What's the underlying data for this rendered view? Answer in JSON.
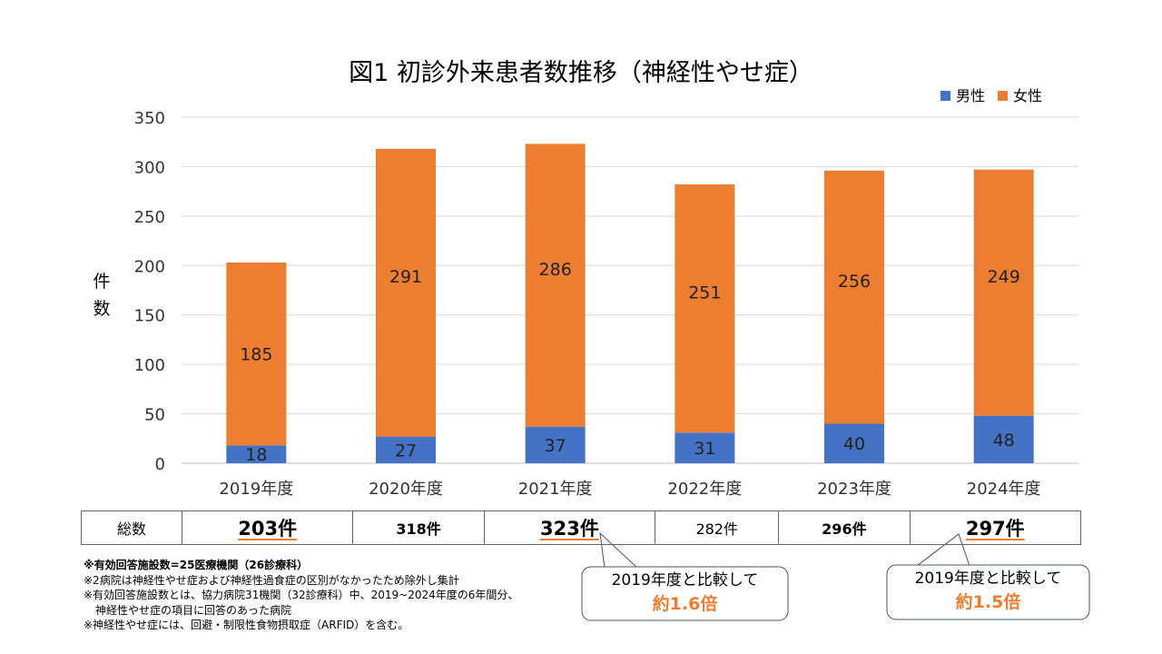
{
  "chart_data": {
    "type": "bar",
    "stacked": true,
    "title": "図1 初診外来患者数推移（神経性やせ症）",
    "ylabel": "件数",
    "xlabel": "",
    "ylim": [
      0,
      350
    ],
    "yticks": [
      0,
      50,
      100,
      150,
      200,
      250,
      300,
      350
    ],
    "grid": true,
    "legend_position": "top-right",
    "categories": [
      "2019年度",
      "2020年度",
      "2021年度",
      "2022年度",
      "2023年度",
      "2024年度"
    ],
    "series": [
      {
        "name": "男性",
        "color": "#4472C4",
        "values": [
          18,
          27,
          37,
          31,
          40,
          48
        ]
      },
      {
        "name": "女性",
        "color": "#ED7D31",
        "values": [
          185,
          291,
          286,
          251,
          256,
          249
        ]
      }
    ]
  },
  "totals": {
    "label": "総数",
    "values": [
      "203件",
      "318件",
      "323件",
      "282件",
      "296件",
      "297件"
    ]
  },
  "notes": [
    "※有効回答施設数=25医療機関（26診療科）",
    "※2病院は神経性やせ症および神経性過食症の区別がなかったため除外し集計",
    "※有効回答施設数とは、協力病院31機関（32診療科）中、2019~2024年度の6年間分、",
    "神経性やせ症の項目に回答のあった病院",
    "※神経性やせ症には、回避・制限性食物摂取症（ARFID）を含む。"
  ],
  "callouts": [
    {
      "line1": "2019年度と比較して",
      "line2": "約1.6倍"
    },
    {
      "line1": "2019年度と比較して",
      "line2": "約1.5倍"
    }
  ]
}
